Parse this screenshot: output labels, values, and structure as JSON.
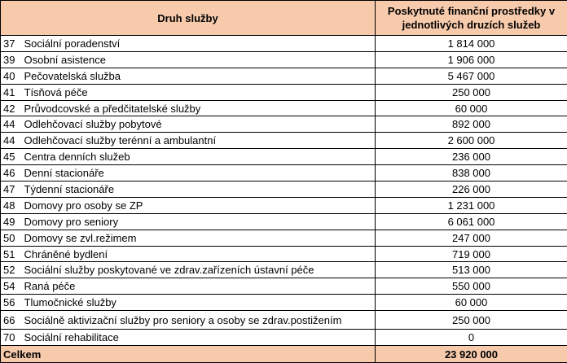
{
  "header": {
    "service_type": "Druh služby",
    "funds_provided": "Poskytnuté finanční prostředky v jednotlivých druzích služeb"
  },
  "rows": [
    {
      "code": "37",
      "name": "Sociální poradenství",
      "amount": "1 814 000"
    },
    {
      "code": "39",
      "name": "Osobní asistence",
      "amount": "1 906 000"
    },
    {
      "code": "40",
      "name": "Pečovatelská služba",
      "amount": "5 467 000"
    },
    {
      "code": "41",
      "name": "Tísňová péče",
      "amount": "250 000"
    },
    {
      "code": "42",
      "name": "Průvodcovské a předčitatelské služby",
      "amount": "60 000"
    },
    {
      "code": "44",
      "name": "Odlehčovací služby pobytové",
      "amount": "892 000"
    },
    {
      "code": "44",
      "name": "Odlehčovací služby terénní a ambulantní",
      "amount": "2 600 000"
    },
    {
      "code": "45",
      "name": "Centra denních služeb",
      "amount": "236 000"
    },
    {
      "code": "46",
      "name": "Denní stacionáře",
      "amount": "838 000"
    },
    {
      "code": "47",
      "name": "Týdenní stacionáře",
      "amount": "226 000"
    },
    {
      "code": "48",
      "name": "Domovy pro osoby se ZP",
      "amount": "1 231 000"
    },
    {
      "code": "49",
      "name": "Domovy pro seniory",
      "amount": "6 061 000"
    },
    {
      "code": "50",
      "name": "Domovy se zvl.režimem",
      "amount": "247 000"
    },
    {
      "code": "51",
      "name": "Chráněné bydlení",
      "amount": "719 000"
    },
    {
      "code": "52",
      "name": "Sociální služby poskytované ve zdrav.zařízeních ústavní péče",
      "amount": "513 000"
    },
    {
      "code": "54",
      "name": "Raná péče",
      "amount": "550 000"
    },
    {
      "code": "56",
      "name": "Tlumočnické služby",
      "amount": "60 000"
    },
    {
      "code": "66",
      "name": "Sociálně aktivizační služby pro seniory a osoby se zdrav.postižením",
      "amount": "250 000"
    },
    {
      "code": "70",
      "name": "Sociální rehabilitace",
      "amount": "0"
    }
  ],
  "total": {
    "label": "Celkem",
    "amount": "23 920 000"
  },
  "colors": {
    "header_bg": "#f7caac",
    "border": "#000000"
  }
}
